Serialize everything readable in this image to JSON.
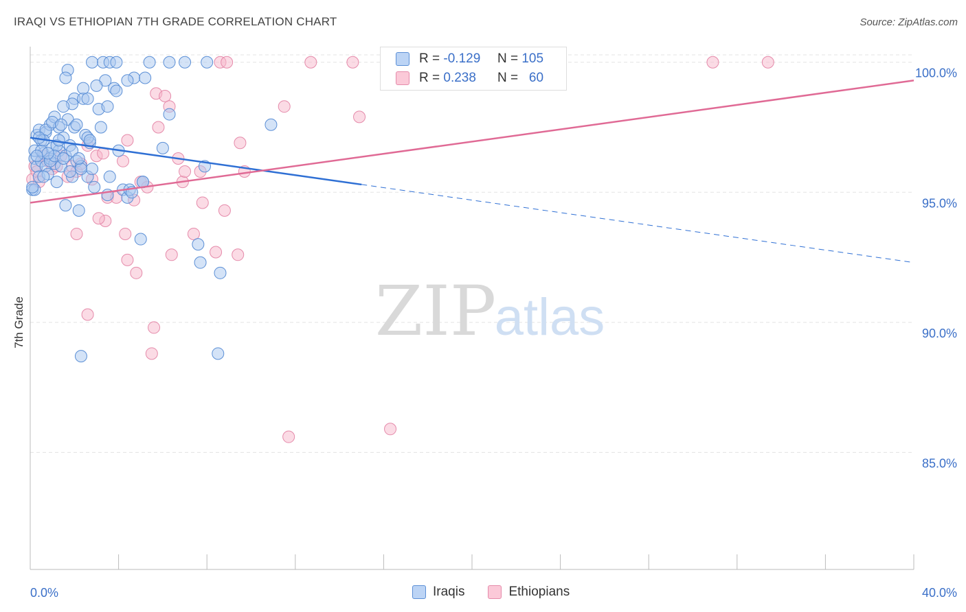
{
  "title": "IRAQI VS ETHIOPIAN 7TH GRADE CORRELATION CHART",
  "source": "Source: ZipAtlas.com",
  "watermark": {
    "zip": "ZIP",
    "atlas": "atlas"
  },
  "legend_top": {
    "rows": [
      {
        "r_label": "R =",
        "r_value": "-0.129",
        "n_label": "N =",
        "n_value": "105"
      },
      {
        "r_label": "R =",
        "r_value": "0.238",
        "n_label": "N =",
        "n_value": "60"
      }
    ]
  },
  "legend_bottom": {
    "items": [
      "Iraqis",
      "Ethiopians"
    ]
  },
  "colors": {
    "blue_fill": "#a9c8f0",
    "blue_stroke": "#5b8fd6",
    "blue_line": "#2e6fd4",
    "pink_fill": "#f7b8cc",
    "pink_stroke": "#e58aaa",
    "pink_line": "#e06a95",
    "axis_text": "#3a6fc8",
    "grid": "#e3e3e3"
  },
  "chart_data": {
    "type": "scatter",
    "title": "IRAQI VS ETHIOPIAN 7TH GRADE CORRELATION CHART",
    "xlabel": "",
    "ylabel": "7th Grade",
    "xlim": [
      0,
      40
    ],
    "ylim": [
      80.5,
      100.6
    ],
    "x_tick_labels": [
      "0.0%",
      "40.0%"
    ],
    "y_ticks": [
      85,
      90,
      95,
      100
    ],
    "y_tick_labels": [
      "85.0%",
      "90.0%",
      "95.0%",
      "100.0%"
    ],
    "grid": true,
    "legend": "bottom",
    "series": [
      {
        "name": "Iraqis",
        "R": -0.129,
        "N": 105,
        "trend": {
          "x0": 0,
          "y0": 97.1,
          "x1": 15.0,
          "y1": 95.3,
          "dash_to_x": 40,
          "dash_to_y": 92.3
        },
        "points": [
          [
            0.1,
            95.1
          ],
          [
            0.2,
            96.3
          ],
          [
            0.2,
            96.6
          ],
          [
            0.3,
            97.2
          ],
          [
            0.3,
            96.0
          ],
          [
            0.4,
            95.6
          ],
          [
            0.4,
            97.4
          ],
          [
            0.5,
            97.0
          ],
          [
            0.5,
            96.2
          ],
          [
            0.6,
            96.5
          ],
          [
            0.7,
            97.3
          ],
          [
            0.7,
            96.0
          ],
          [
            0.8,
            95.7
          ],
          [
            0.9,
            97.6
          ],
          [
            0.9,
            96.3
          ],
          [
            1.0,
            96.7
          ],
          [
            1.1,
            97.9
          ],
          [
            1.1,
            96.1
          ],
          [
            1.2,
            95.4
          ],
          [
            1.3,
            97.5
          ],
          [
            1.3,
            96.6
          ],
          [
            1.4,
            96.0
          ],
          [
            1.5,
            97.1
          ],
          [
            1.6,
            96.4
          ],
          [
            1.6,
            94.5
          ],
          [
            1.7,
            97.8
          ],
          [
            1.8,
            96.8
          ],
          [
            1.9,
            95.6
          ],
          [
            2.0,
            98.6
          ],
          [
            2.0,
            97.5
          ],
          [
            2.1,
            96.2
          ],
          [
            2.2,
            94.3
          ],
          [
            2.3,
            96.0
          ],
          [
            2.4,
            98.6
          ],
          [
            2.5,
            97.2
          ],
          [
            2.6,
            95.6
          ],
          [
            2.7,
            96.9
          ],
          [
            2.8,
            95.9
          ],
          [
            2.9,
            95.2
          ],
          [
            3.1,
            98.2
          ],
          [
            3.2,
            97.5
          ],
          [
            3.4,
            99.3
          ],
          [
            3.5,
            94.9
          ],
          [
            3.6,
            95.6
          ],
          [
            3.8,
            99.0
          ],
          [
            4.0,
            96.6
          ],
          [
            4.2,
            95.1
          ],
          [
            4.4,
            94.8
          ],
          [
            4.5,
            95.1
          ],
          [
            4.7,
            99.4
          ],
          [
            5.0,
            93.2
          ],
          [
            5.1,
            95.4
          ],
          [
            5.4,
            100.0
          ],
          [
            6.0,
            96.7
          ],
          [
            6.3,
            98.0
          ],
          [
            7.0,
            100.0
          ],
          [
            7.6,
            93.0
          ],
          [
            7.7,
            92.3
          ],
          [
            7.9,
            96.0
          ],
          [
            8.6,
            91.9
          ],
          [
            8.5,
            88.8
          ],
          [
            10.9,
            97.6
          ],
          [
            2.3,
            88.7
          ],
          [
            1.7,
            99.7
          ],
          [
            2.8,
            100.0
          ],
          [
            3.3,
            100.0
          ],
          [
            3.6,
            100.0
          ],
          [
            3.9,
            100.0
          ],
          [
            4.4,
            99.3
          ],
          [
            5.2,
            99.4
          ],
          [
            6.3,
            100.0
          ],
          [
            8.0,
            100.0
          ],
          [
            1.6,
            99.4
          ],
          [
            1.9,
            98.4
          ],
          [
            2.6,
            98.6
          ],
          [
            3.0,
            99.1
          ],
          [
            2.4,
            99.0
          ],
          [
            1.5,
            98.3
          ],
          [
            0.7,
            97.4
          ],
          [
            1.0,
            97.7
          ],
          [
            1.4,
            97.6
          ],
          [
            2.1,
            97.6
          ],
          [
            2.6,
            97.1
          ],
          [
            0.2,
            95.1
          ],
          [
            0.9,
            96.2
          ],
          [
            1.8,
            95.8
          ],
          [
            1.2,
            96.8
          ],
          [
            0.5,
            96.6
          ],
          [
            2.3,
            95.9
          ],
          [
            3.9,
            98.9
          ],
          [
            3.5,
            98.3
          ],
          [
            1.1,
            96.4
          ],
          [
            0.6,
            97.0
          ],
          [
            0.8,
            96.5
          ],
          [
            1.3,
            97.0
          ],
          [
            2.7,
            97.0
          ],
          [
            4.6,
            95.0
          ],
          [
            0.3,
            96.4
          ],
          [
            0.4,
            97.1
          ],
          [
            1.9,
            96.6
          ],
          [
            2.2,
            96.3
          ],
          [
            0.1,
            95.2
          ],
          [
            0.6,
            95.6
          ],
          [
            1.5,
            96.3
          ],
          [
            5.1,
            95.4
          ]
        ]
      },
      {
        "name": "Ethiopians",
        "R": 0.238,
        "N": 60,
        "trend": {
          "x0": 0,
          "y0": 94.6,
          "x1": 40,
          "y1": 99.3
        },
        "points": [
          [
            0.1,
            95.5
          ],
          [
            0.2,
            96.0
          ],
          [
            0.3,
            95.8
          ],
          [
            0.4,
            95.4
          ],
          [
            0.6,
            96.4
          ],
          [
            0.8,
            96.2
          ],
          [
            1.0,
            95.9
          ],
          [
            1.2,
            96.0
          ],
          [
            1.4,
            96.4
          ],
          [
            1.7,
            95.6
          ],
          [
            1.9,
            96.0
          ],
          [
            2.1,
            95.8
          ],
          [
            2.3,
            96.1
          ],
          [
            2.6,
            96.8
          ],
          [
            2.8,
            95.5
          ],
          [
            3.0,
            96.4
          ],
          [
            3.3,
            96.5
          ],
          [
            3.5,
            94.8
          ],
          [
            3.9,
            94.8
          ],
          [
            4.2,
            96.2
          ],
          [
            4.4,
            97.0
          ],
          [
            4.7,
            94.7
          ],
          [
            5.0,
            95.4
          ],
          [
            5.3,
            95.2
          ],
          [
            5.7,
            98.8
          ],
          [
            5.8,
            97.5
          ],
          [
            6.1,
            98.7
          ],
          [
            6.3,
            98.3
          ],
          [
            6.7,
            96.3
          ],
          [
            6.9,
            95.4
          ],
          [
            7.0,
            95.8
          ],
          [
            7.4,
            93.4
          ],
          [
            7.7,
            95.8
          ],
          [
            7.8,
            94.6
          ],
          [
            8.4,
            92.7
          ],
          [
            8.8,
            94.3
          ],
          [
            9.4,
            92.6
          ],
          [
            9.5,
            96.9
          ],
          [
            9.7,
            95.8
          ],
          [
            11.5,
            98.3
          ],
          [
            2.1,
            93.4
          ],
          [
            3.4,
            93.9
          ],
          [
            4.3,
            93.4
          ],
          [
            4.4,
            92.4
          ],
          [
            4.8,
            91.9
          ],
          [
            6.4,
            92.6
          ],
          [
            2.6,
            90.3
          ],
          [
            5.5,
            88.8
          ],
          [
            5.6,
            89.8
          ],
          [
            14.9,
            97.9
          ],
          [
            8.6,
            100.0
          ],
          [
            8.9,
            100.0
          ],
          [
            12.7,
            100.0
          ],
          [
            14.6,
            100.0
          ],
          [
            20.8,
            100.0
          ],
          [
            30.9,
            100.0
          ],
          [
            33.4,
            100.0
          ],
          [
            16.3,
            85.9
          ],
          [
            11.7,
            85.6
          ],
          [
            3.1,
            94.0
          ]
        ]
      }
    ]
  }
}
